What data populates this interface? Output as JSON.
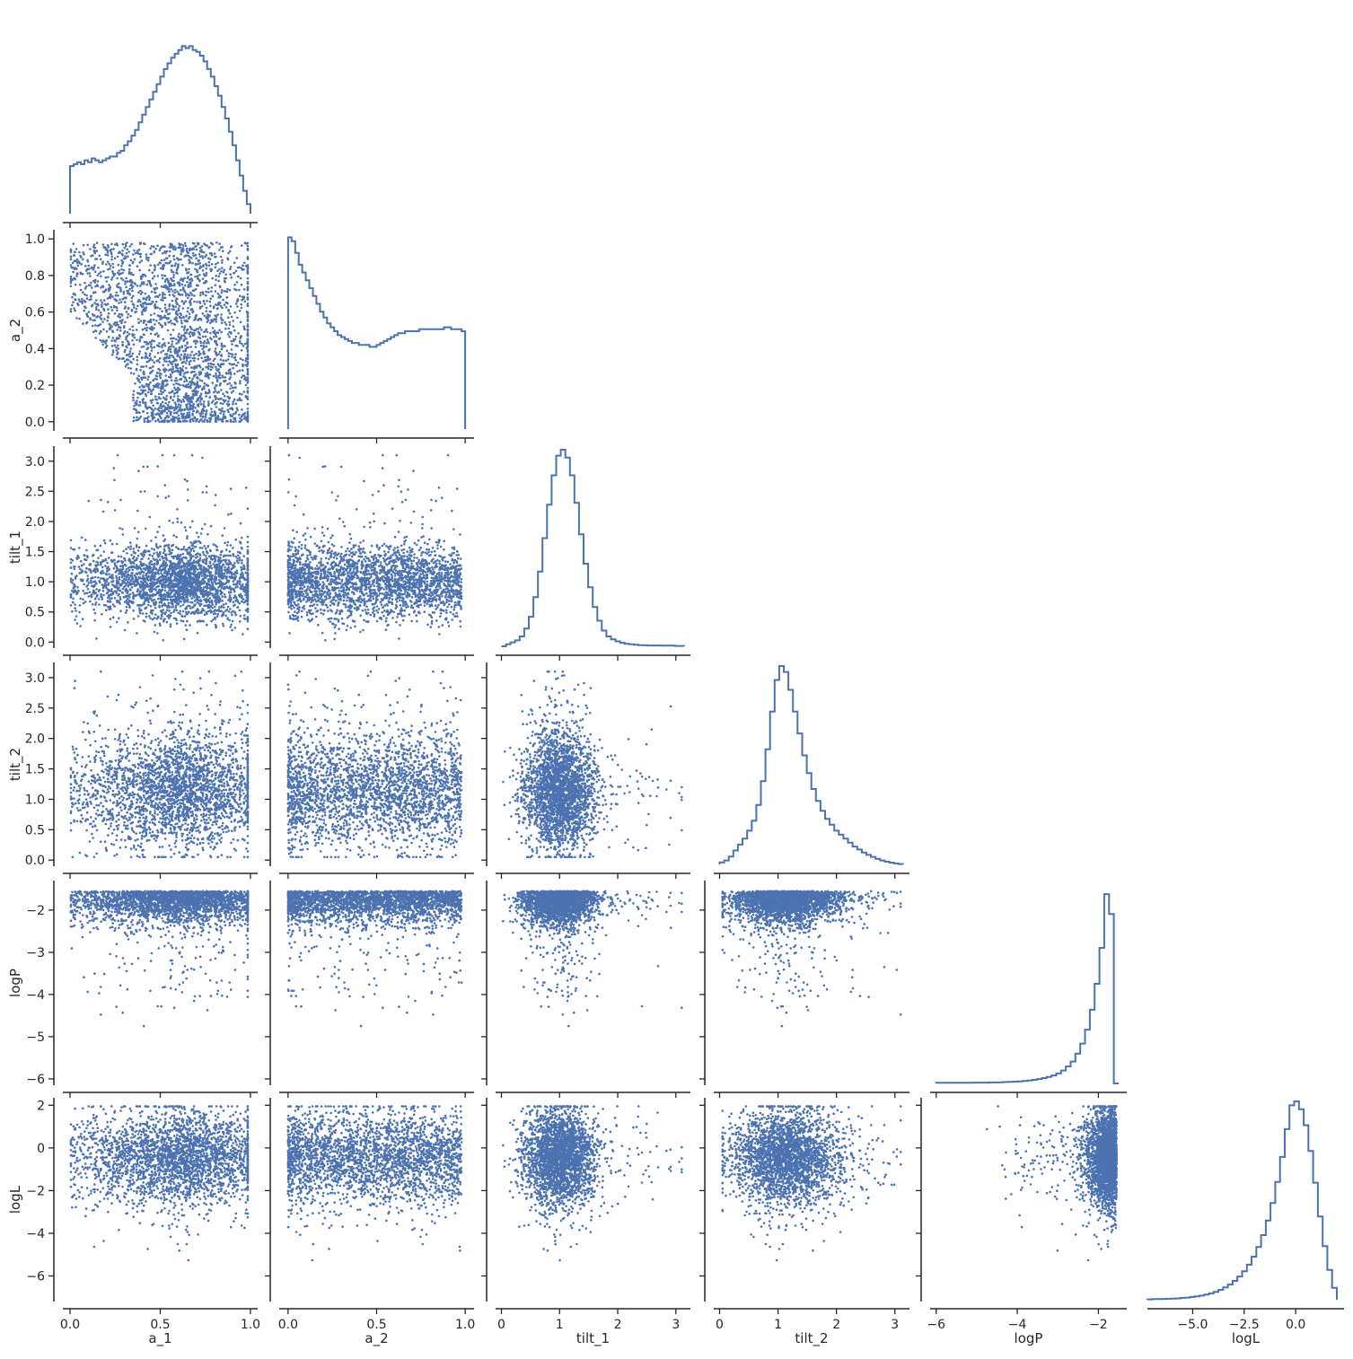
{
  "chart_data": {
    "type": "pairplot",
    "layout": "corner",
    "marker_color": "#4c72b0",
    "diagonal": "step-histogram",
    "offdiagonal": "scatter",
    "variables": [
      {
        "name": "a_1",
        "lim": [
          -0.04,
          1.04
        ],
        "ticks": [
          0.0,
          0.5,
          1.0
        ],
        "tick_labels": [
          "0.0",
          "0.5",
          "1.0"
        ]
      },
      {
        "name": "a_2",
        "lim": [
          -0.05,
          1.05
        ],
        "ticks": [
          0.0,
          0.2,
          0.4,
          0.6,
          0.8,
          1.0
        ],
        "tick_labels": [
          "0.0",
          "0.2",
          "0.4",
          "0.6",
          "0.8",
          "1.0"
        ],
        "x_ticks": [
          0.0,
          0.5,
          1.0
        ],
        "x_tick_labels": [
          "0.0",
          "0.5",
          "1.0"
        ]
      },
      {
        "name": "tilt_1",
        "lim": [
          -0.1,
          3.25
        ],
        "ticks": [
          0.0,
          0.5,
          1.0,
          1.5,
          2.0,
          2.5,
          3.0
        ],
        "tick_labels": [
          "0.0",
          "0.5",
          "1.0",
          "1.5",
          "2.0",
          "2.5",
          "3.0"
        ],
        "x_ticks": [
          0,
          1,
          2,
          3
        ],
        "x_tick_labels": [
          "0",
          "1",
          "2",
          "3"
        ]
      },
      {
        "name": "tilt_2",
        "lim": [
          -0.1,
          3.25
        ],
        "ticks": [
          0.0,
          0.5,
          1.0,
          1.5,
          2.0,
          2.5,
          3.0
        ],
        "tick_labels": [
          "0.0",
          "0.5",
          "1.0",
          "1.5",
          "2.0",
          "2.5",
          "3.0"
        ],
        "x_ticks": [
          0,
          1,
          2,
          3
        ],
        "x_tick_labels": [
          "0",
          "1",
          "2",
          "3"
        ]
      },
      {
        "name": "logP",
        "lim": [
          -6.15,
          -1.3
        ],
        "ticks": [
          -6,
          -5,
          -4,
          -3,
          -2
        ],
        "tick_labels": [
          "−6",
          "−5",
          "−4",
          "−3",
          "−2"
        ],
        "x_ticks": [
          -6,
          -4,
          -2
        ],
        "x_tick_labels": [
          "−6",
          "−4",
          "−2"
        ]
      },
      {
        "name": "logL",
        "lim": [
          -7.2,
          2.35
        ],
        "ticks": [
          -6,
          -4,
          -2,
          0,
          2
        ],
        "tick_labels": [
          "−6",
          "−4",
          "−2",
          "0",
          "2"
        ],
        "x_ticks": [
          -5.0,
          -2.5,
          0.0
        ],
        "x_tick_labels": [
          "−5.0",
          "−2.5",
          "0.0"
        ]
      }
    ],
    "histograms": {
      "a_1": {
        "range": [
          0,
          1
        ],
        "counts": [
          0.25,
          0.26,
          0.27,
          0.26,
          0.28,
          0.27,
          0.29,
          0.28,
          0.27,
          0.28,
          0.29,
          0.3,
          0.3,
          0.32,
          0.33,
          0.36,
          0.38,
          0.41,
          0.44,
          0.48,
          0.52,
          0.56,
          0.6,
          0.64,
          0.68,
          0.72,
          0.76,
          0.79,
          0.82,
          0.84,
          0.86,
          0.88,
          0.87,
          0.88,
          0.86,
          0.85,
          0.83,
          0.8,
          0.76,
          0.72,
          0.67,
          0.62,
          0.56,
          0.5,
          0.43,
          0.36,
          0.28,
          0.2,
          0.12,
          0.05
        ]
      },
      "a_2": {
        "range": [
          0,
          1
        ],
        "counts": [
          0.98,
          0.96,
          0.9,
          0.84,
          0.8,
          0.76,
          0.72,
          0.68,
          0.64,
          0.6,
          0.57,
          0.54,
          0.52,
          0.5,
          0.48,
          0.47,
          0.46,
          0.45,
          0.44,
          0.44,
          0.43,
          0.43,
          0.43,
          0.42,
          0.42,
          0.43,
          0.44,
          0.45,
          0.46,
          0.47,
          0.48,
          0.49,
          0.49,
          0.5,
          0.5,
          0.5,
          0.5,
          0.51,
          0.51,
          0.51,
          0.51,
          0.51,
          0.51,
          0.51,
          0.52,
          0.52,
          0.51,
          0.51,
          0.51,
          0.5
        ]
      },
      "tilt_1": {
        "range": [
          0,
          3.14
        ],
        "counts": [
          0.0,
          0.01,
          0.02,
          0.03,
          0.05,
          0.09,
          0.15,
          0.25,
          0.38,
          0.55,
          0.72,
          0.87,
          0.97,
          1.0,
          0.96,
          0.87,
          0.73,
          0.57,
          0.42,
          0.3,
          0.2,
          0.13,
          0.08,
          0.05,
          0.035,
          0.025,
          0.018,
          0.013,
          0.01,
          0.008,
          0.006,
          0.005,
          0.004,
          0.004,
          0.004,
          0.003,
          0.003,
          0.003,
          0.002,
          0.002
        ]
      },
      "tilt_2": {
        "range": [
          0,
          3.14
        ],
        "counts": [
          0.01,
          0.02,
          0.04,
          0.07,
          0.1,
          0.13,
          0.17,
          0.22,
          0.3,
          0.42,
          0.58,
          0.77,
          0.93,
          1.0,
          0.97,
          0.88,
          0.77,
          0.66,
          0.55,
          0.46,
          0.38,
          0.32,
          0.27,
          0.23,
          0.2,
          0.17,
          0.15,
          0.13,
          0.11,
          0.09,
          0.075,
          0.06,
          0.048,
          0.038,
          0.028,
          0.02,
          0.014,
          0.009,
          0.005,
          0.002
        ]
      },
      "logP": {
        "range": [
          -6.0,
          -1.5
        ],
        "counts": [
          0.003,
          0.003,
          0.003,
          0.003,
          0.003,
          0.003,
          0.003,
          0.003,
          0.004,
          0.004,
          0.004,
          0.005,
          0.005,
          0.006,
          0.007,
          0.008,
          0.009,
          0.01,
          0.012,
          0.015,
          0.018,
          0.022,
          0.027,
          0.033,
          0.04,
          0.05,
          0.065,
          0.085,
          0.11,
          0.15,
          0.2,
          0.27,
          0.37,
          0.5,
          0.68,
          0.95,
          0.85,
          0.0
        ]
      },
      "logL": {
        "range": [
          -7.2,
          2.0
        ],
        "counts": [
          0.002,
          0.003,
          0.003,
          0.004,
          0.005,
          0.006,
          0.007,
          0.009,
          0.011,
          0.014,
          0.017,
          0.021,
          0.026,
          0.032,
          0.04,
          0.05,
          0.062,
          0.077,
          0.095,
          0.117,
          0.144,
          0.177,
          0.217,
          0.266,
          0.326,
          0.399,
          0.488,
          0.594,
          0.72,
          0.86,
          0.98,
          1.0,
          0.96,
          0.88,
          0.75,
          0.59,
          0.42,
          0.27,
          0.15,
          0.06
        ]
      }
    }
  }
}
